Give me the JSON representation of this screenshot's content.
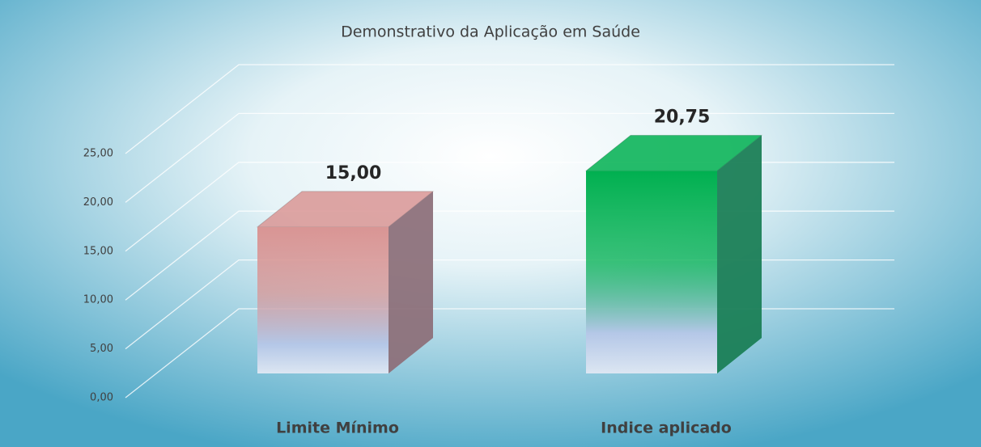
{
  "chart_data": {
    "type": "bar3d",
    "title": "Demonstrativo da Aplicação em Saúde",
    "categories": [
      "Limite Mínimo",
      "Indice aplicado"
    ],
    "values": [
      15,
      20.75
    ],
    "value_labels": [
      "15,00",
      "20,75"
    ],
    "colors": [
      "#d99594",
      "#00b050"
    ],
    "ylim": [
      0,
      25
    ],
    "yticks": [
      {
        "value": 0,
        "label": "0,00"
      },
      {
        "value": 5,
        "label": "5,00"
      },
      {
        "value": 10,
        "label": "10,00"
      },
      {
        "value": 15,
        "label": "15,00"
      },
      {
        "value": 20,
        "label": "20,00"
      },
      {
        "value": 25,
        "label": "25,00"
      }
    ],
    "grid": true
  }
}
